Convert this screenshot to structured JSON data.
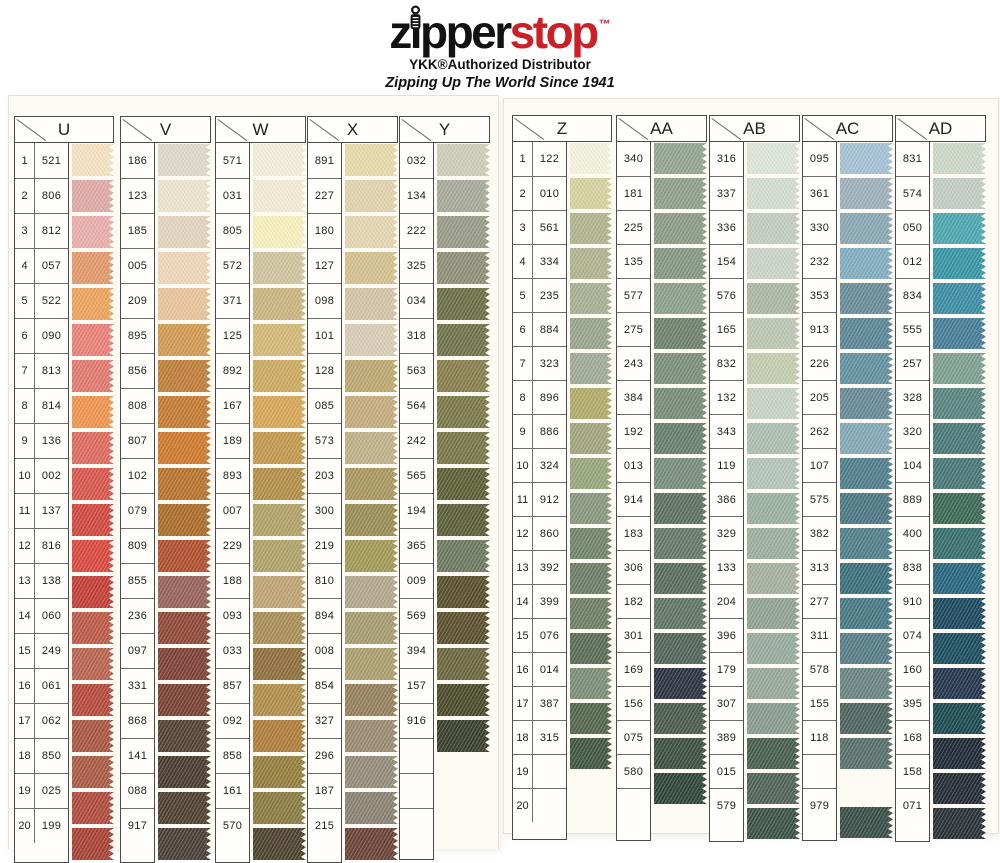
{
  "logo": {
    "brand_black": "zipper",
    "brand_red": "stop",
    "trademark": "™",
    "subtitle": "YKK®Authorized Distributor",
    "tagline": "Zipping Up The World Since 1941",
    "accent_red": "#cd2026"
  },
  "row_numbers": [
    1,
    2,
    3,
    4,
    5,
    6,
    7,
    8,
    9,
    10,
    11,
    12,
    13,
    14,
    15,
    16,
    17,
    18,
    19,
    20
  ],
  "panels": [
    {
      "name": "left",
      "columns": [
        {
          "label": "U",
          "numbered": true,
          "codes": [
            "521",
            "806",
            "812",
            "057",
            "522",
            "090",
            "813",
            "814",
            "136",
            "002",
            "137",
            "816",
            "138",
            "060",
            "249",
            "061",
            "062",
            "850",
            "025",
            "199"
          ],
          "colors": [
            "#f4e1c2",
            "#dfaaa5",
            "#e9aeac",
            "#e29a6d",
            "#eca45e",
            "#e88279",
            "#e07a70",
            "#ee9550",
            "#dd6c60",
            "#d75850",
            "#cf4a42",
            "#d94a40",
            "#c24038",
            "#bd5c4a",
            "#b86652",
            "#b54c3e",
            "#a85845",
            "#aa5c46",
            "#b04c40",
            "#a84438"
          ]
        },
        {
          "label": "V",
          "numbered": false,
          "codes": [
            "186",
            "123",
            "185",
            "005",
            "209",
            "895",
            "856",
            "808",
            "807",
            "102",
            "079",
            "809",
            "855",
            "236",
            "097",
            "331",
            "868",
            "141",
            "088",
            "917"
          ],
          "colors": [
            "#dcd8ca",
            "#ebe4cc",
            "#e2d4bd",
            "#eed6b8",
            "#e8c49b",
            "#d19b54",
            "#bf7f3a",
            "#c57c34",
            "#ce7a2e",
            "#b8742f",
            "#aa6e2c",
            "#b0512f",
            "#97635a",
            "#8f4b39",
            "#7e4238",
            "#7a4336",
            "#564336",
            "#4a3e30",
            "#4f4233",
            "#4b4038"
          ]
        },
        {
          "label": "W",
          "numbered": false,
          "codes": [
            "571",
            "031",
            "805",
            "572",
            "371",
            "125",
            "892",
            "167",
            "189",
            "893",
            "007",
            "229",
            "188",
            "093",
            "033",
            "857",
            "092",
            "858",
            "161",
            "570"
          ],
          "colors": [
            "#f2eedb",
            "#f1ebd3",
            "#f6efbe",
            "#cfc4a0",
            "#cab581",
            "#d3b877",
            "#ccab62",
            "#d7a757",
            "#c39a4f",
            "#b38f4a",
            "#b2a269",
            "#b1a26a",
            "#bfa475",
            "#aa8f58",
            "#8f703f",
            "#b08f4e",
            "#b07e3d",
            "#968040",
            "#8a7c43",
            "#4e4430"
          ]
        },
        {
          "label": "X",
          "numbered": false,
          "codes": [
            "891",
            "227",
            "180",
            "127",
            "098",
            "101",
            "128",
            "085",
            "573",
            "203",
            "300",
            "219",
            "810",
            "894",
            "008",
            "854",
            "327",
            "296",
            "187",
            "215"
          ],
          "colors": [
            "#e7d9aa",
            "#e2d3ae",
            "#e4d6b2",
            "#d5c190",
            "#d5c3a8",
            "#d8ccb4",
            "#bca872",
            "#c5ac7e",
            "#bfb189",
            "#aa9860",
            "#9b8d56",
            "#a29a58",
            "#b2a78d",
            "#a79c72",
            "#ac9f70",
            "#96815e",
            "#9b8c72",
            "#958c7a",
            "#8a8372",
            "#6b4538"
          ]
        },
        {
          "label": "Y",
          "numbered": false,
          "codes": [
            "032",
            "134",
            "222",
            "325",
            "034",
            "318",
            "563",
            "564",
            "242",
            "565",
            "194",
            "365",
            "009",
            "569",
            "394",
            "157",
            "916",
            "",
            "",
            ""
          ],
          "colors": [
            "#cecdb9",
            "#a8aa9b",
            "#999c88",
            "#8e9078",
            "#6d7048",
            "#71744c",
            "#897f4e",
            "#7b7a4a",
            "#78784a",
            "#5e6038",
            "#5c6039",
            "#6e7a62",
            "#59512e",
            "#5d5230",
            "#6c6840",
            "#4d4c2d",
            "#3c4030",
            null,
            null,
            null
          ]
        }
      ]
    },
    {
      "name": "right",
      "columns": [
        {
          "label": "Z",
          "numbered": true,
          "codes": [
            "122",
            "010",
            "561",
            "334",
            "235",
            "884",
            "323",
            "896",
            "886",
            "324",
            "912",
            "860",
            "392",
            "399",
            "076",
            "014",
            "387",
            "315",
            "",
            ""
          ],
          "colors": [
            "#f4f2db",
            "#d5d29e",
            "#b2b48e",
            "#b0b490",
            "#a8b191",
            "#99a68c",
            "#a1ab96",
            "#b2ac6a",
            "#a2a67e",
            "#99a67e",
            "#89987e",
            "#74866c",
            "#6e7f68",
            "#708066",
            "#5c6e56",
            "#7c9078",
            "#54684e",
            "#425844",
            null,
            null
          ]
        },
        {
          "label": "AA",
          "numbered": false,
          "codes": [
            "340",
            "181",
            "225",
            "135",
            "577",
            "275",
            "243",
            "384",
            "192",
            "013",
            "914",
            "183",
            "306",
            "182",
            "301",
            "169",
            "156",
            "075",
            "580",
            ""
          ],
          "colors": [
            "#94a592",
            "#8fa08c",
            "#8c9c86",
            "#869884",
            "#8ca08c",
            "#6f836e",
            "#7c907c",
            "#788d7a",
            "#698070",
            "#798e80",
            "#5e7263",
            "#667a6b",
            "#5a6e5f",
            "#627668",
            "#52665a",
            "#2e3441",
            "#4b5c50",
            "#3e5142",
            "#31463a",
            null
          ]
        },
        {
          "label": "AB",
          "numbered": false,
          "codes": [
            "316",
            "337",
            "336",
            "154",
            "576",
            "165",
            "832",
            "132",
            "343",
            "119",
            "386",
            "329",
            "133",
            "204",
            "396",
            "179",
            "307",
            "389",
            "015",
            "579"
          ],
          "colors": [
            "#dde5d8",
            "#d4dcd0",
            "#c2ccbf",
            "#cbd3c9",
            "#adb8a4",
            "#bdc7b2",
            "#c4ccae",
            "#c7d2c4",
            "#adbfb2",
            "#b3c4bc",
            "#9bb0a2",
            "#9caf9e",
            "#a7b0a0",
            "#92a396",
            "#99aca0",
            "#99a89c",
            "#899c90",
            "#49604f",
            "#50645a",
            "#3e5449"
          ]
        },
        {
          "label": "AC",
          "numbered": false,
          "codes": [
            "095",
            "361",
            "330",
            "232",
            "353",
            "913",
            "226",
            "205",
            "262",
            "107",
            "575",
            "382",
            "313",
            "277",
            "311",
            "578",
            "155",
            "118",
            "",
            "979"
          ],
          "colors": [
            "#a5c2d4",
            "#9eb0ba",
            "#8aa8b4",
            "#83aec0",
            "#698e9a",
            "#5c8795",
            "#63919f",
            "#698b97",
            "#84a8b5",
            "#527e8c",
            "#4d7986",
            "#52808b",
            "#3c707c",
            "#497a85",
            "#597e88",
            "#6a8683",
            "#4e6560",
            "#59716c",
            null,
            "#3a5048"
          ]
        },
        {
          "label": "AD",
          "numbered": false,
          "codes": [
            "831",
            "574",
            "050",
            "012",
            "834",
            "555",
            "257",
            "328",
            "320",
            "104",
            "889",
            "400",
            "838",
            "910",
            "074",
            "160",
            "395",
            "168",
            "158",
            "071"
          ],
          "colors": [
            "#cbd8c8",
            "#c1ccc4",
            "#4ea8b0",
            "#3996a4",
            "#3d8ea4",
            "#497e96",
            "#7ea090",
            "#5b8580",
            "#4c7a78",
            "#497876",
            "#3d6a58",
            "#38706e",
            "#2a6880",
            "#1e4a60",
            "#1d4f5e",
            "#26384e",
            "#1d4c52",
            "#222c38",
            "#252e36",
            "#2b3438"
          ]
        }
      ]
    }
  ]
}
